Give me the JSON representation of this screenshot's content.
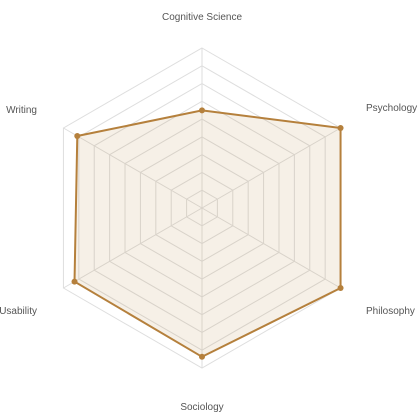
{
  "chart_data": {
    "type": "radar",
    "categories": [
      "Cognitive Science",
      "Psychology",
      "Philosophy",
      "Sociology",
      "Usability",
      "Writing"
    ],
    "series": [
      {
        "values": [
          61,
          100,
          100,
          93,
          92,
          90
        ]
      }
    ],
    "rlim": [
      0,
      100
    ],
    "ring_count": 9,
    "grid": true,
    "legend": "none",
    "colors": {
      "series": "#b5803c",
      "grid": "#dedede",
      "label": "#555555"
    }
  }
}
